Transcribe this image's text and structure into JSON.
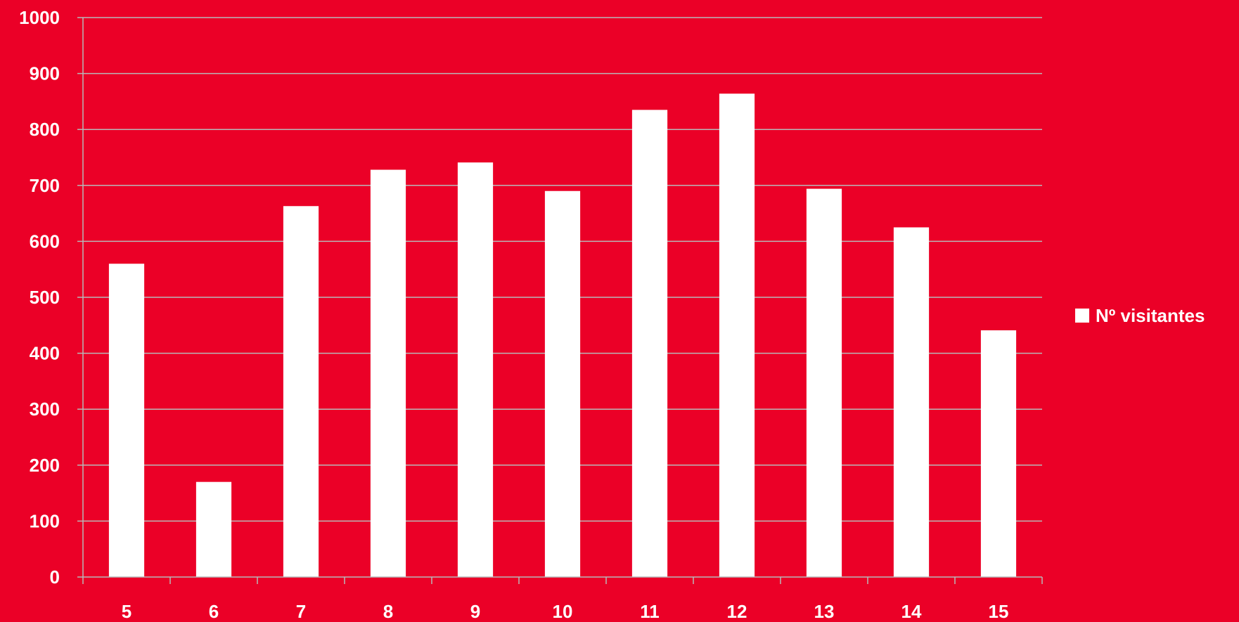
{
  "chart_data": {
    "type": "bar",
    "categories": [
      "5",
      "6",
      "7",
      "8",
      "9",
      "10",
      "11",
      "12",
      "13",
      "14",
      "15"
    ],
    "series": [
      {
        "name": "Nº visitantes",
        "values": [
          560,
          170,
          663,
          728,
          741,
          690,
          835,
          864,
          694,
          625,
          441
        ]
      }
    ],
    "title": "",
    "xlabel": "",
    "ylabel": "",
    "ylim": [
      0,
      1000
    ],
    "yticks": [
      "0",
      "100",
      "200",
      "300",
      "400",
      "500",
      "600",
      "700",
      "800",
      "900",
      "1000"
    ],
    "grid": true,
    "legend": "right"
  },
  "colors": {
    "background": "#EB0027",
    "bar": "#FFFFFF",
    "text": "#FFFFFF",
    "gridline": "#B8B8B8"
  }
}
